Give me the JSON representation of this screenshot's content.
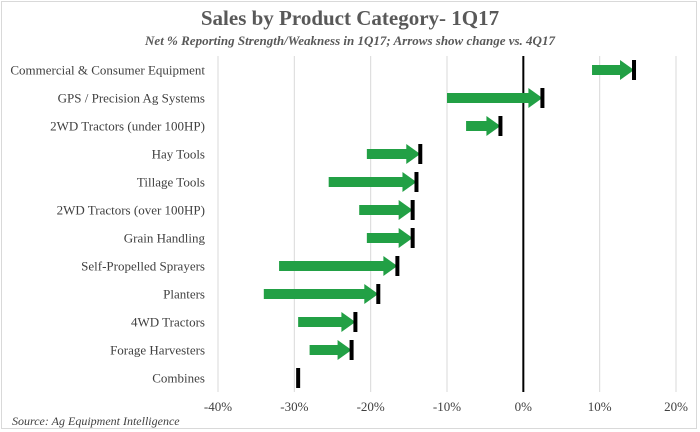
{
  "chart_data": {
    "type": "bar",
    "title": "Sales by Product Category- 1Q17",
    "subtitle": "Net % Reporting Strength/Weakness in 1Q17; Arrows show change vs. 4Q17",
    "source": "Source: Ag Equipment Intelligence",
    "xlim": [
      -40,
      20
    ],
    "xticks": [
      -40,
      -30,
      -20,
      -10,
      0,
      10,
      20
    ],
    "xtick_labels": [
      "-40%",
      "-30%",
      "-20%",
      "-10%",
      "0%",
      "10%",
      "20%"
    ],
    "grid": true,
    "colors": {
      "arrow": "#22a045",
      "marker": "#000000",
      "grid": "#d9d9d9",
      "zero_line": "#000000"
    },
    "categories": [
      "Commercial & Consumer Equipment",
      "GPS / Precision Ag Systems",
      "2WD Tractors (under 100HP)",
      "Hay Tools",
      "Tillage Tools",
      "2WD Tractors (over 100HP)",
      "Grain Handling",
      "Self-Propelled Sprayers",
      "Planters",
      "4WD Tractors",
      "Forage Harvesters",
      "Combines"
    ],
    "series": [
      {
        "name": "4Q17",
        "values": [
          9,
          -10,
          -7.5,
          -20.5,
          -25.5,
          -21.5,
          -20.5,
          -32,
          -34,
          -29.5,
          -28,
          -29.5
        ]
      },
      {
        "name": "1Q17",
        "values": [
          14.5,
          2.5,
          -3,
          -13.5,
          -14,
          -14.5,
          -14.5,
          -16.5,
          -19,
          -22,
          -22.5,
          -29.5
        ]
      }
    ]
  }
}
